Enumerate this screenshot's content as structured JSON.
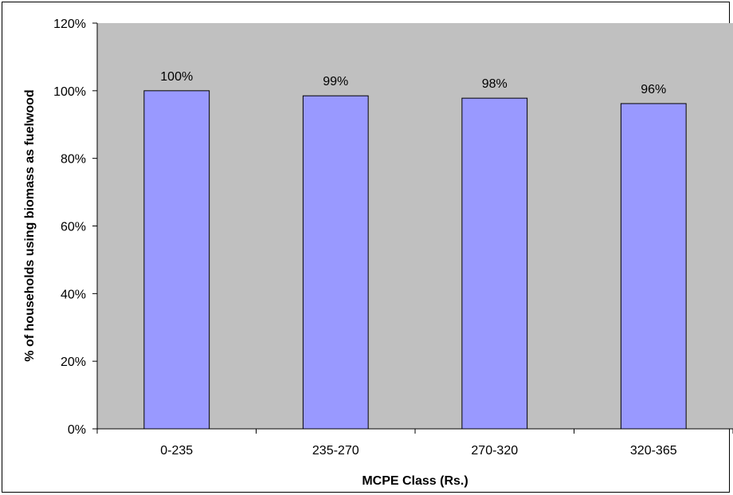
{
  "chart_data": {
    "type": "bar",
    "title": "",
    "xlabel": "MCPE Class (Rs.)",
    "ylabel": "% of households using biomass as fuelwood",
    "categories": [
      "0-235",
      "235-270",
      "270-320",
      "320-365"
    ],
    "values": [
      100,
      98.5,
      97.8,
      96.2
    ],
    "data_labels": [
      "100%",
      "99%",
      "98%",
      "96%"
    ],
    "ylim": [
      0,
      120
    ],
    "yticks": [
      0,
      20,
      40,
      60,
      80,
      100,
      120
    ],
    "ytick_labels": [
      "0%",
      "20%",
      "40%",
      "60%",
      "80%",
      "100%",
      "120%"
    ],
    "grid": false,
    "legend": "none",
    "colors": {
      "plot_background": "#c0c0c0",
      "bar_fill": "#9999ff",
      "bar_stroke": "#000000"
    }
  }
}
